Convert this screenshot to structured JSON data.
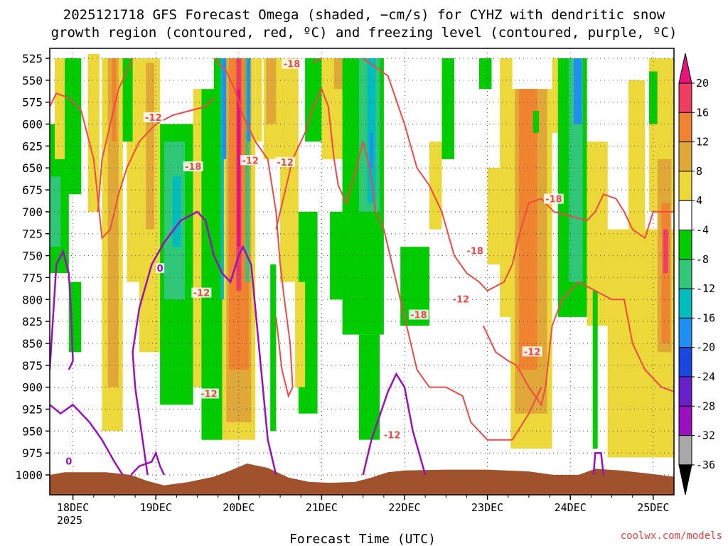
{
  "title_line1": "2025121718 GFS Forecast Omega (shaded, −cm/s) for CYHZ with dendritic snow",
  "title_line2": "growth region (contoured, red, ºC) and freezing level (contoured, purple, ºC)",
  "credit": "coolwx.com/models",
  "chart_data": {
    "type": "heatmap",
    "xlabel": "Forecast Time (UTC)",
    "ylabel": "",
    "x_ticks": [
      "18DEC",
      "19DEC",
      "20DEC",
      "21DEC",
      "22DEC",
      "23DEC",
      "24DEC",
      "25DEC"
    ],
    "x_tick_sub": "2025",
    "y_ticks": [
      525,
      550,
      575,
      600,
      625,
      650,
      675,
      700,
      725,
      750,
      775,
      800,
      825,
      850,
      875,
      900,
      925,
      950,
      975,
      1000
    ],
    "grid": true,
    "colorbar": {
      "labels": [
        "20",
        "16",
        "12",
        "8",
        "4",
        "-4",
        "-8",
        "-12",
        "-16",
        "-20",
        "-24",
        "-28",
        "-32",
        "-36"
      ],
      "colors": [
        "#ee3f62",
        "#f08330",
        "#e0a838",
        "#ecd838",
        "#ffffff",
        "#00cc00",
        "#30c878",
        "#00bcbc",
        "#2090f0",
        "#1848e0",
        "#6820c8",
        "#9a10c0",
        "#a8a8a8"
      ],
      "top_arrow_color": "#e8147c",
      "bottom_arrow_color": "#000000"
    },
    "contour_labels_red": [
      {
        "text": "-18",
        "day": 20.64,
        "p": 532
      },
      {
        "text": "-12",
        "day": 18.97,
        "p": 593
      },
      {
        "text": "-18",
        "day": 19.45,
        "p": 649
      },
      {
        "text": "-12",
        "day": 20.14,
        "p": 642
      },
      {
        "text": "-12",
        "day": 20.56,
        "p": 644
      },
      {
        "text": "-18",
        "day": 22.17,
        "p": 818
      },
      {
        "text": "-12",
        "day": 19.55,
        "p": 793
      },
      {
        "text": "-12",
        "day": 19.64,
        "p": 908
      },
      {
        "text": "-18",
        "day": 22.85,
        "p": 745
      },
      {
        "text": "-12",
        "day": 22.68,
        "p": 800
      },
      {
        "text": "-18",
        "day": 23.8,
        "p": 686
      },
      {
        "text": "-12",
        "day": 21.85,
        "p": 955
      },
      {
        "text": "-12",
        "day": 23.54,
        "p": 860
      }
    ],
    "contour_labels_purple": [
      {
        "text": "0",
        "day": 19.05,
        "p": 765
      },
      {
        "text": "0",
        "day": 17.95,
        "p": 985
      }
    ]
  }
}
